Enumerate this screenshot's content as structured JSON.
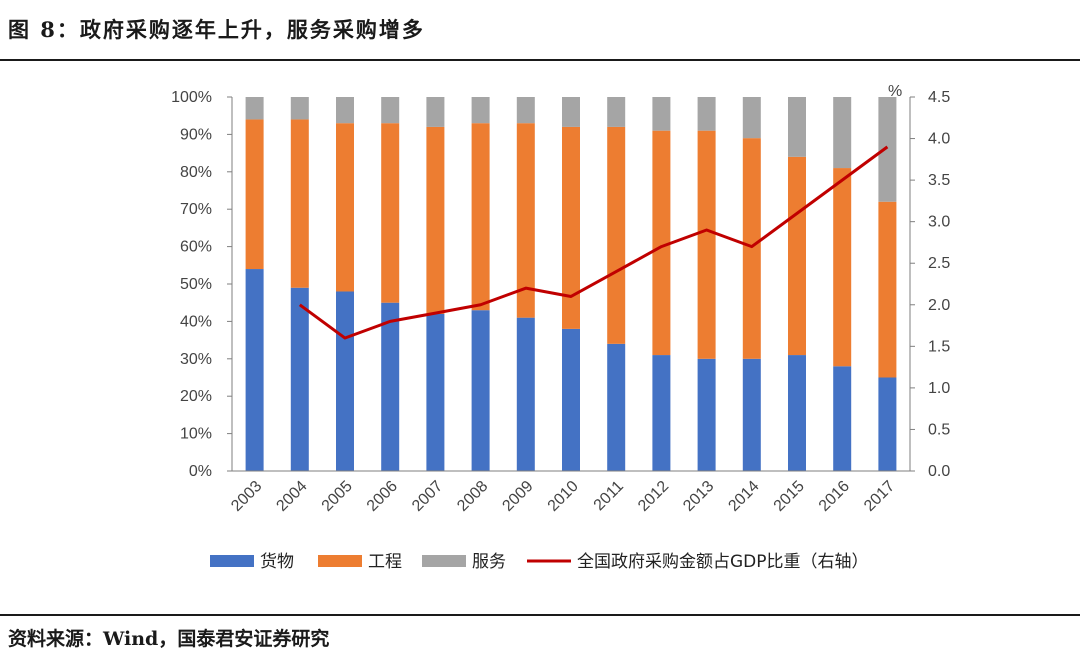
{
  "title": "图 8：政府采购逐年上升，服务采购增多",
  "source": "资料来源：Wind，国泰君安证券研究",
  "colors": {
    "goods": "#4472C4",
    "engineering": "#ED7D31",
    "services": "#A5A5A5",
    "line": "#C00000"
  },
  "chart_data": {
    "type": "bar",
    "stacked": true,
    "categories": [
      "2003",
      "2004",
      "2005",
      "2006",
      "2007",
      "2008",
      "2009",
      "2010",
      "2011",
      "2012",
      "2013",
      "2014",
      "2015",
      "2016",
      "2017"
    ],
    "series": [
      {
        "name": "货物",
        "axis": "left",
        "unit": "%",
        "values": [
          54,
          49,
          48,
          45,
          42,
          43,
          41,
          38,
          34,
          31,
          30,
          30,
          31,
          28,
          25
        ]
      },
      {
        "name": "工程",
        "axis": "left",
        "unit": "%",
        "values": [
          40,
          45,
          45,
          48,
          50,
          50,
          52,
          54,
          58,
          60,
          61,
          59,
          53,
          53,
          47
        ]
      },
      {
        "name": "服务",
        "axis": "left",
        "unit": "%",
        "values": [
          6,
          6,
          7,
          7,
          8,
          7,
          7,
          8,
          8,
          9,
          9,
          11,
          16,
          19,
          28
        ]
      }
    ],
    "line": {
      "type": "line",
      "name": "全国政府采购金额占GDP比重（右轴）",
      "axis": "right",
      "categories": [
        "2004",
        "2005",
        "2006",
        "2007",
        "2008",
        "2009",
        "2010",
        "2011",
        "2012",
        "2013",
        "2014",
        "2015",
        "2016",
        "2017"
      ],
      "values": [
        2.0,
        1.6,
        1.8,
        1.9,
        2.0,
        2.2,
        2.1,
        2.4,
        2.7,
        2.9,
        2.7,
        3.1,
        3.5,
        3.9
      ]
    },
    "left_axis": {
      "ylim": [
        0,
        100
      ],
      "ticks": [
        "0%",
        "10%",
        "20%",
        "30%",
        "40%",
        "50%",
        "60%",
        "70%",
        "80%",
        "90%",
        "100%"
      ]
    },
    "right_axis": {
      "unit": "%",
      "ylim": [
        0,
        4.5
      ],
      "ticks": [
        "0.0",
        "0.5",
        "1.0",
        "1.5",
        "2.0",
        "2.5",
        "3.0",
        "3.5",
        "4.0",
        "4.5"
      ]
    },
    "legend": [
      "货物",
      "工程",
      "服务",
      "全国政府采购金额占GDP比重（右轴）"
    ],
    "legend_position": "bottom",
    "grid": false
  }
}
